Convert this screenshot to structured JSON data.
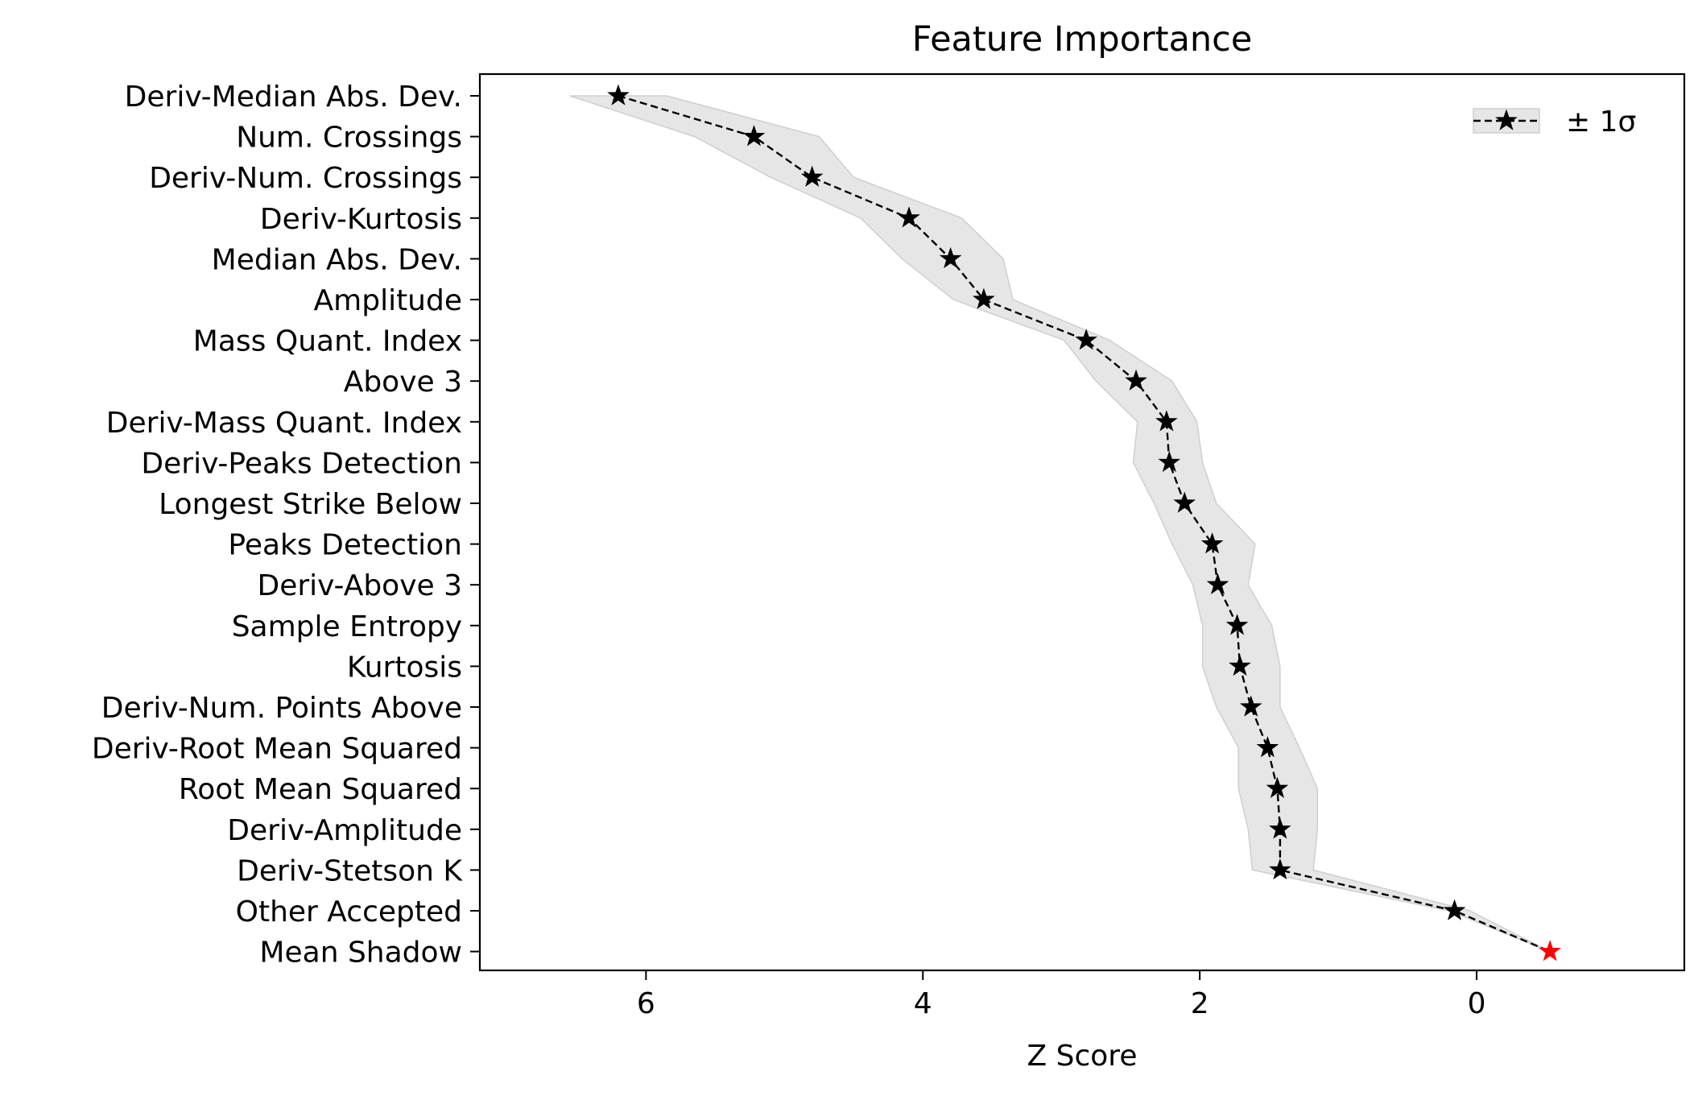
{
  "chart_data": {
    "type": "line",
    "title": "Feature Importance",
    "xlabel": "Z Score",
    "ylabel": "",
    "xlim": [
      7.2,
      -1.5
    ],
    "x_inverted": true,
    "xticks": [
      6,
      4,
      2,
      0
    ],
    "grid": false,
    "legend": {
      "position": "upper-right",
      "label": "± 1σ"
    },
    "colors": {
      "line": "#000000",
      "band": "#e6e6e6",
      "band_edge": "#cfcfcf",
      "highlight": "#ff0000"
    },
    "highlight_category": "Mean Shadow",
    "categories": [
      "Deriv-Median Abs. Dev.",
      "Num. Crossings",
      "Deriv-Num. Crossings",
      "Deriv-Kurtosis",
      "Median Abs. Dev.",
      "Amplitude",
      "Mass Quant. Index",
      "Above 3",
      "Deriv-Mass Quant. Index",
      "Deriv-Peaks Detection",
      "Longest Strike Below",
      "Peaks Detection",
      "Deriv-Above 3",
      "Sample Entropy",
      "Kurtosis",
      "Deriv-Num. Points Above",
      "Deriv-Root Mean Squared",
      "Root Mean Squared",
      "Deriv-Amplitude",
      "Deriv-Stetson K",
      "Other Accepted",
      "Mean Shadow"
    ],
    "series": [
      {
        "values": [
          6.2,
          5.22,
          4.8,
          4.1,
          3.8,
          3.56,
          2.82,
          2.46,
          2.24,
          2.22,
          2.11,
          1.91,
          1.87,
          1.73,
          1.71,
          1.63,
          1.51,
          1.44,
          1.42,
          1.42,
          0.16,
          -0.53
        ],
        "lower": [
          5.85,
          4.75,
          4.5,
          3.72,
          3.42,
          3.35,
          2.65,
          2.2,
          2.02,
          1.98,
          1.88,
          1.6,
          1.65,
          1.48,
          1.42,
          1.42,
          1.28,
          1.15,
          1.15,
          1.18,
          0.05,
          -0.53
        ],
        "upper": [
          6.55,
          5.65,
          5.1,
          4.45,
          4.15,
          3.78,
          2.98,
          2.75,
          2.45,
          2.48,
          2.33,
          2.2,
          2.05,
          1.98,
          1.98,
          1.88,
          1.72,
          1.72,
          1.65,
          1.62,
          0.2,
          -0.53
        ]
      }
    ]
  }
}
